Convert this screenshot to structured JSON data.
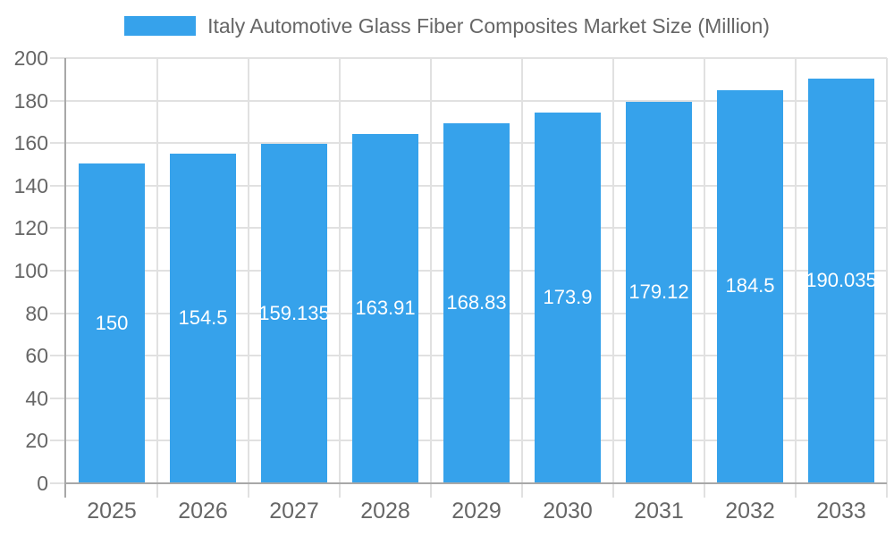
{
  "chart_data": {
    "type": "bar",
    "title": "Italy Automotive Glass Fiber Composites Market Size (Million)",
    "legend_position": "top",
    "categories": [
      "2025",
      "2026",
      "2027",
      "2028",
      "2029",
      "2030",
      "2031",
      "2032",
      "2033"
    ],
    "values": [
      150,
      154.5,
      159.135,
      163.91,
      168.83,
      173.9,
      179.12,
      184.5,
      190.035
    ],
    "bar_labels": [
      "150",
      "154.5",
      "159.135",
      "163.91",
      "168.83",
      "173.9",
      "179.12",
      "184.5",
      "190.035"
    ],
    "xlabel": "",
    "ylabel": "",
    "ylim": [
      0,
      200
    ],
    "yticks": [
      0,
      20,
      40,
      60,
      80,
      100,
      120,
      140,
      160,
      180,
      200
    ],
    "grid": true,
    "colors": {
      "bar": "#36A2EB",
      "bar_label": "#FFFFFF",
      "grid": "#E1E1E1",
      "axis": "#A8A8A8",
      "tick_text": "#666666",
      "legend_text": "#666666",
      "background": "#FFFFFF"
    }
  }
}
